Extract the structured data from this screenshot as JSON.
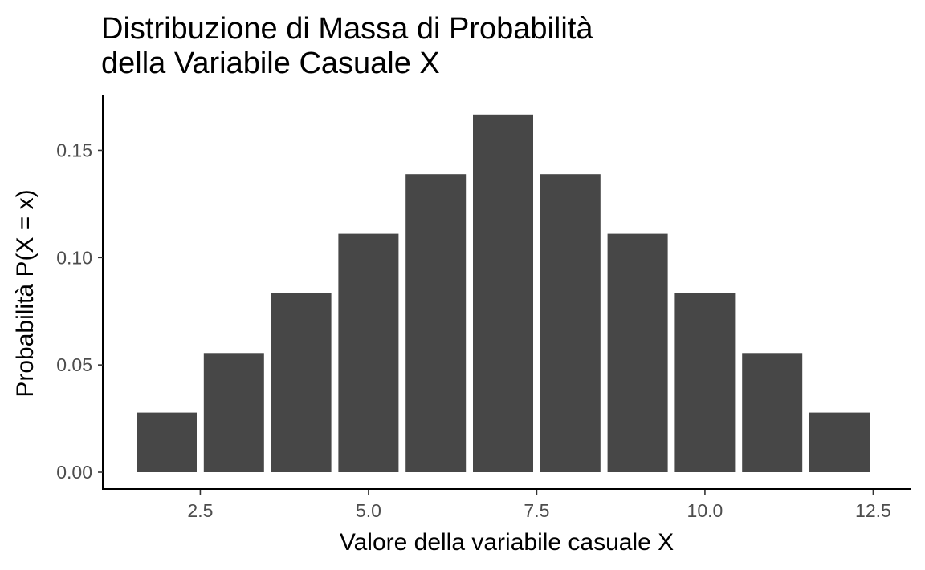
{
  "chart_data": {
    "type": "bar",
    "title": [
      "Distribuzione di Massa di Probabilità",
      "della Variabile Casuale X"
    ],
    "xlabel": "Valore della variabile casuale X",
    "ylabel": "Probabilità P(X = x)",
    "x": [
      2,
      3,
      4,
      5,
      6,
      7,
      8,
      9,
      10,
      11,
      12
    ],
    "values": [
      0.02778,
      0.05556,
      0.08333,
      0.11111,
      0.13889,
      0.16667,
      0.13889,
      0.11111,
      0.08333,
      0.05556,
      0.02778
    ],
    "bar_color": "#474747",
    "xlim": [
      1.5,
      12.5
    ],
    "ylim": [
      0,
      0.175
    ],
    "x_ticks": [
      2.5,
      5.0,
      7.5,
      10.0,
      12.5
    ],
    "x_tick_labels": [
      "2.5",
      "5.0",
      "7.5",
      "10.0",
      "12.5"
    ],
    "y_ticks": [
      0.0,
      0.05,
      0.1,
      0.15
    ],
    "y_tick_labels": [
      "0.00",
      "0.05",
      "0.10",
      "0.15"
    ],
    "grid": false,
    "legend": "none"
  }
}
